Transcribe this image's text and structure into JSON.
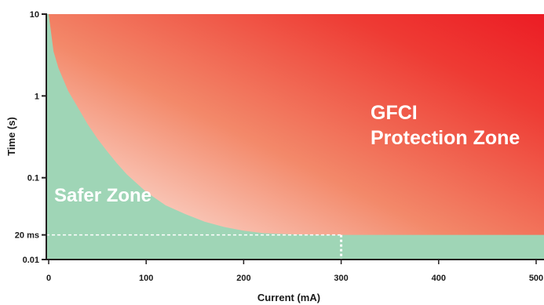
{
  "chart_data": {
    "type": "area",
    "xlabel": "Current (mA)",
    "ylabel": "Time (s)",
    "xlim": [
      0,
      500
    ],
    "ylim": [
      0.01,
      10
    ],
    "y_scale": "log",
    "x_ticks": [
      0,
      100,
      200,
      300,
      400,
      500
    ],
    "x_tick_labels": [
      "0",
      "100",
      "200",
      "300",
      "400",
      "500"
    ],
    "y_ticks": [
      0.01,
      0.02,
      0.1,
      1,
      10
    ],
    "y_tick_labels": [
      "0.01",
      "20 ms",
      "0.1",
      "1",
      "10"
    ],
    "boundary_curve": {
      "x": [
        0,
        5,
        10,
        20,
        30,
        40,
        50,
        60,
        70,
        80,
        100,
        120,
        140,
        160,
        180,
        200,
        220,
        250,
        280,
        300,
        400,
        500
      ],
      "y": [
        10,
        3.5,
        2.2,
        1.15,
        0.72,
        0.45,
        0.3,
        0.21,
        0.15,
        0.11,
        0.067,
        0.046,
        0.036,
        0.029,
        0.025,
        0.0225,
        0.021,
        0.0203,
        0.02,
        0.02,
        0.02,
        0.02
      ]
    },
    "reference_lines": [
      {
        "type": "horizontal",
        "y": 0.02,
        "x_to": 300,
        "style": "dashed"
      },
      {
        "type": "vertical",
        "x": 300,
        "y_to": 0.02,
        "style": "dashed"
      }
    ],
    "regions": [
      {
        "label": "Safer Zone",
        "position": "below-curve",
        "color": "#9fd5b6"
      },
      {
        "label_lines": [
          "GFCI",
          "Protection Zone"
        ],
        "position": "above-curve",
        "color": "#ec1c24"
      }
    ]
  }
}
